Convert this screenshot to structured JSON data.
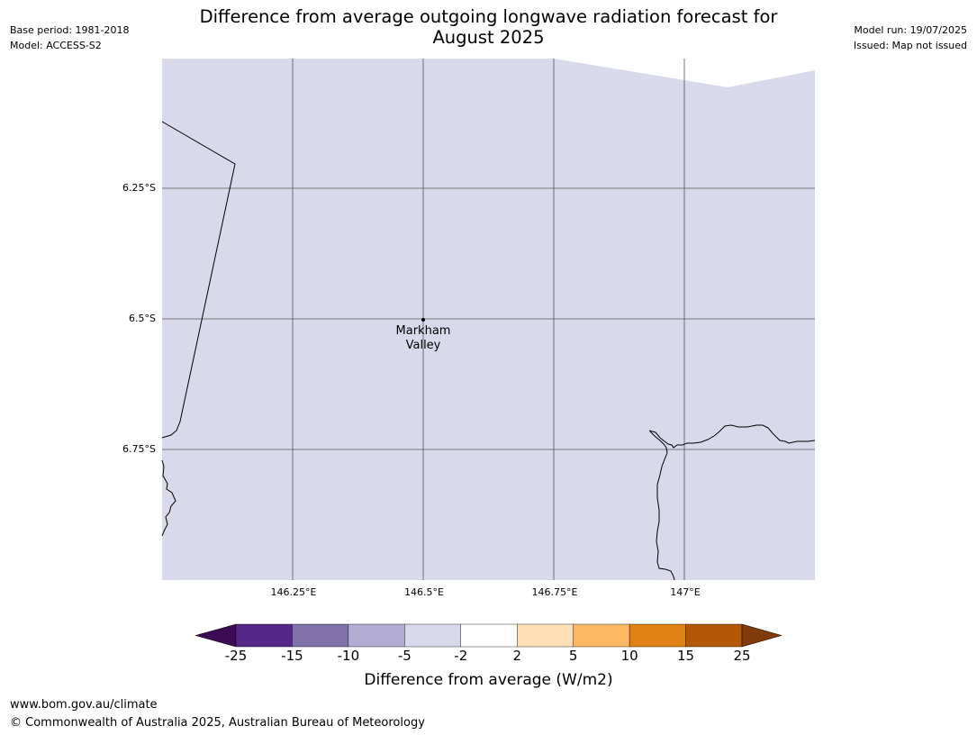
{
  "title_lines": [
    "Difference from average outgoing longwave radiation forecast for",
    "August 2025"
  ],
  "meta_left": {
    "base_period": "Base period: 1981-2018",
    "model": "Model: ACCESS-S2"
  },
  "meta_right": {
    "model_run": "Model run: 19/07/2025",
    "issued": "Issued: Map not issued"
  },
  "map": {
    "fill_color": "#d8d9ea",
    "grid_color": "#555555",
    "lat_labels": [
      "6.25°S",
      "6.5°S",
      "6.75°S"
    ],
    "lon_labels": [
      "146.25°E",
      "146.5°E",
      "146.75°E",
      "147°E"
    ],
    "location": {
      "name_line1": "Markham",
      "name_line2": "Valley",
      "lat": -6.5,
      "lon": 146.5
    }
  },
  "colorbar": {
    "label": "Difference from average (W/m2)",
    "ticks": [
      "-25",
      "-15",
      "-10",
      "-5",
      "-2",
      "2",
      "5",
      "10",
      "15",
      "25"
    ],
    "under_color": "#3d0a55",
    "over_color": "#7f3b08",
    "bins": [
      {
        "from": -25,
        "to": -15,
        "color": "#542788"
      },
      {
        "from": -15,
        "to": -10,
        "color": "#8073ac"
      },
      {
        "from": -10,
        "to": -5,
        "color": "#b2abd2"
      },
      {
        "from": -5,
        "to": -2,
        "color": "#d8daeb"
      },
      {
        "from": -2,
        "to": 2,
        "color": "#ffffff"
      },
      {
        "from": 2,
        "to": 5,
        "color": "#fee0b6"
      },
      {
        "from": 5,
        "to": 10,
        "color": "#fdb863"
      },
      {
        "from": 10,
        "to": 15,
        "color": "#e08214"
      },
      {
        "from": 15,
        "to": 25,
        "color": "#b35806"
      }
    ]
  },
  "footer": {
    "url": "www.bom.gov.au/climate",
    "copyright": "© Commonwealth of Australia 2025, Australian Bureau of Meteorology"
  }
}
